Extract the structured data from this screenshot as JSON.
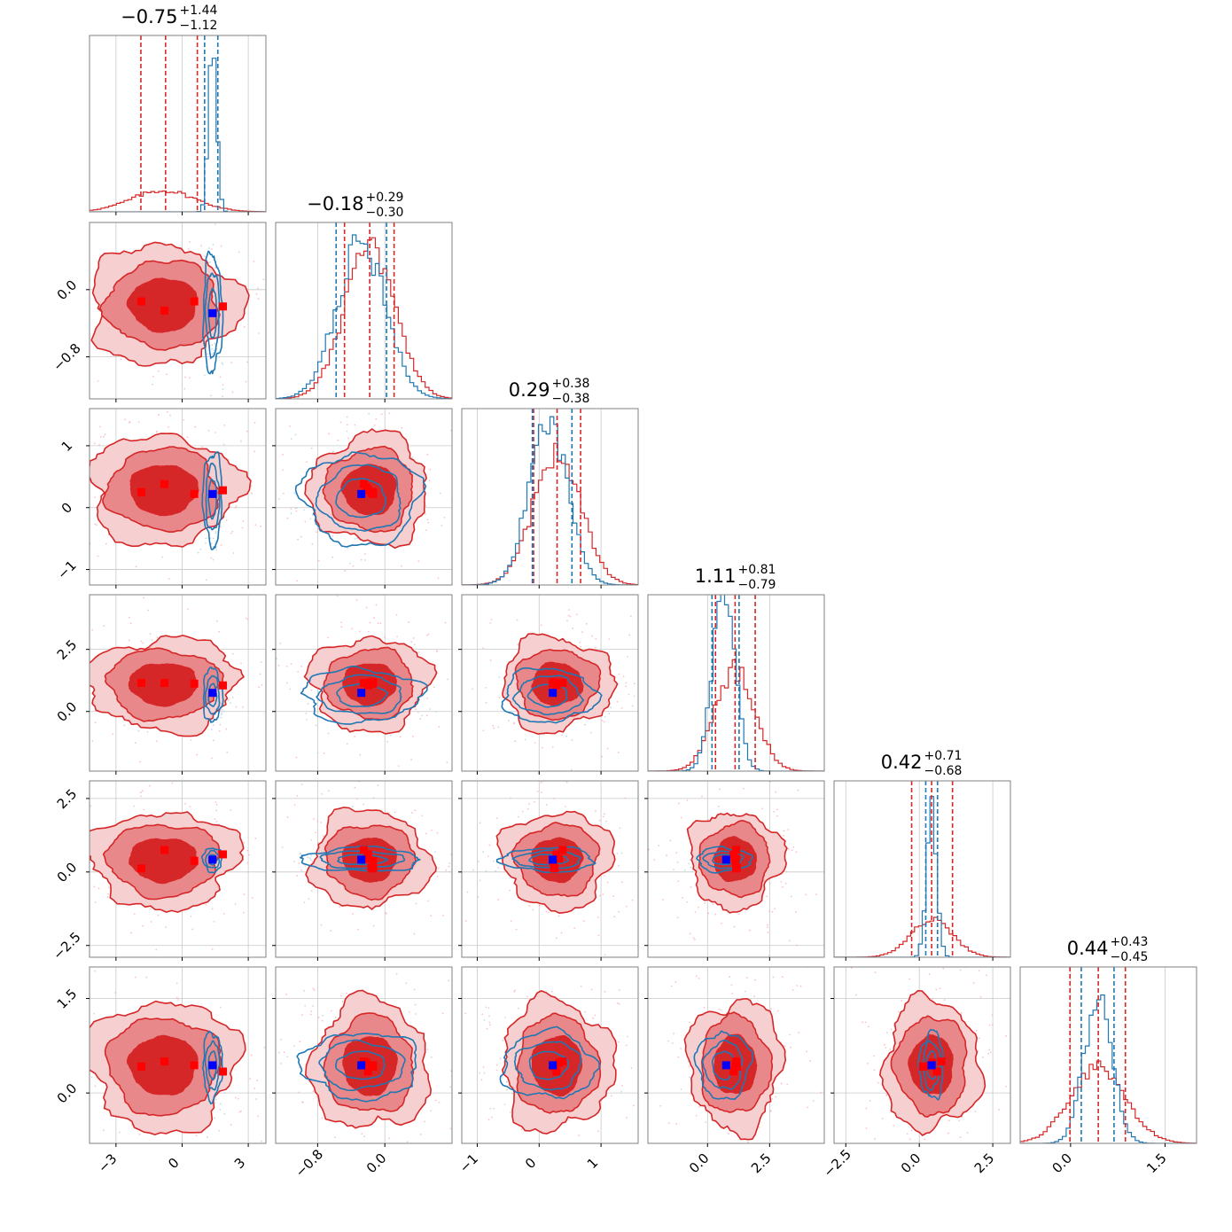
{
  "colors": {
    "red": "#d62728",
    "red_mid": "#e9888a",
    "red_light": "#f6cfd0",
    "blue": "#1f77b4",
    "red_marker": "#ff0000",
    "blue_marker": "#0000ff",
    "grid": "#c8c8c8",
    "frame": "#808080"
  },
  "chart_data": {
    "type": "corner",
    "n_params": 6,
    "grid": true,
    "params": [
      {
        "title_main": "−0.75",
        "title_plus": "+1.44",
        "title_minus": "−1.12",
        "range": [
          -4.2,
          3.8
        ],
        "ticks": [
          -3,
          0,
          3
        ],
        "tick_labels": [
          "−3",
          "0",
          "3"
        ],
        "red": {
          "mean": -0.85,
          "sd": 1.45,
          "q": [
            -1.87,
            -0.75,
            0.69
          ]
        },
        "blue": {
          "mean": 1.38,
          "sd": 0.18,
          "q": [
            1.02,
            1.38,
            1.62
          ]
        }
      },
      {
        "title_main": "−0.18",
        "title_plus": "+0.29",
        "title_minus": "−0.30",
        "range": [
          -1.3,
          0.8
        ],
        "ticks": [
          -0.8,
          0.0
        ],
        "tick_labels": [
          "−0.8",
          "0.0"
        ],
        "red": {
          "mean": -0.18,
          "sd": 0.3,
          "q": [
            -0.48,
            -0.18,
            0.11
          ]
        },
        "blue": {
          "mean": -0.28,
          "sd": 0.29,
          "q": [
            -0.58,
            -0.28,
            0.02
          ]
        }
      },
      {
        "title_main": "0.29",
        "title_plus": "+0.38",
        "title_minus": "−0.38",
        "range": [
          -1.25,
          1.6
        ],
        "ticks": [
          -1,
          0,
          1
        ],
        "tick_labels": [
          "−1",
          "0",
          "1"
        ],
        "red": {
          "mean": 0.29,
          "sd": 0.38,
          "q": [
            -0.09,
            0.29,
            0.67
          ]
        },
        "blue": {
          "mean": 0.15,
          "sd": 0.31,
          "q": [
            -0.11,
            0.15,
            0.53
          ]
        }
      },
      {
        "title_main": "1.11",
        "title_plus": "+0.81",
        "title_minus": "−0.79",
        "range": [
          -2.4,
          4.7
        ],
        "ticks": [
          0.0,
          2.5
        ],
        "tick_labels": [
          "0.0",
          "2.5"
        ],
        "red": {
          "mean": 1.11,
          "sd": 0.8,
          "q": [
            0.32,
            1.11,
            1.92
          ]
        },
        "blue": {
          "mean": 0.65,
          "sd": 0.45,
          "q": [
            0.18,
            0.65,
            1.27
          ]
        }
      },
      {
        "title_main": "0.42",
        "title_plus": "+0.71",
        "title_minus": "−0.68",
        "range": [
          -2.9,
          3.1
        ],
        "ticks": [
          -2.5,
          0.0,
          2.5
        ],
        "tick_labels": [
          "−2.5",
          "0.0",
          "2.5"
        ],
        "red": {
          "mean": 0.42,
          "sd": 0.7,
          "q": [
            -0.26,
            0.42,
            1.13
          ]
        },
        "blue": {
          "mean": 0.42,
          "sd": 0.17,
          "q": [
            0.22,
            0.42,
            0.62
          ]
        }
      },
      {
        "title_main": "0.44",
        "title_plus": "+0.43",
        "title_minus": "−0.45",
        "range": [
          -0.8,
          2.0
        ],
        "ticks": [
          0.0,
          1.5
        ],
        "tick_labels": [
          "0.0",
          "1.5"
        ],
        "red": {
          "mean": 0.44,
          "sd": 0.44,
          "q": [
            -0.01,
            0.44,
            0.87
          ]
        },
        "blue": {
          "mean": 0.44,
          "sd": 0.22,
          "q": [
            0.17,
            0.44,
            0.69
          ]
        }
      }
    ],
    "red_markers": [
      [
        -1.85,
        -0.14,
        0.25,
        1.15,
        0.12,
        0.42
      ],
      [
        -0.8,
        -0.25,
        0.38,
        1.15,
        0.75,
        0.5
      ],
      [
        0.55,
        -0.14,
        0.22,
        1.12,
        0.38,
        0.44
      ],
      [
        1.85,
        -0.2,
        0.28,
        1.05,
        0.6,
        0.34
      ],
      [
        null,
        -0.22,
        0.32,
        1.15,
        0.45,
        0.48
      ],
      [
        null,
        -0.16,
        0.24,
        1.18,
        0.15,
        0.42
      ]
    ],
    "blue_marker": [
      1.38,
      -0.28,
      0.22,
      0.75,
      0.42,
      0.44
    ]
  }
}
